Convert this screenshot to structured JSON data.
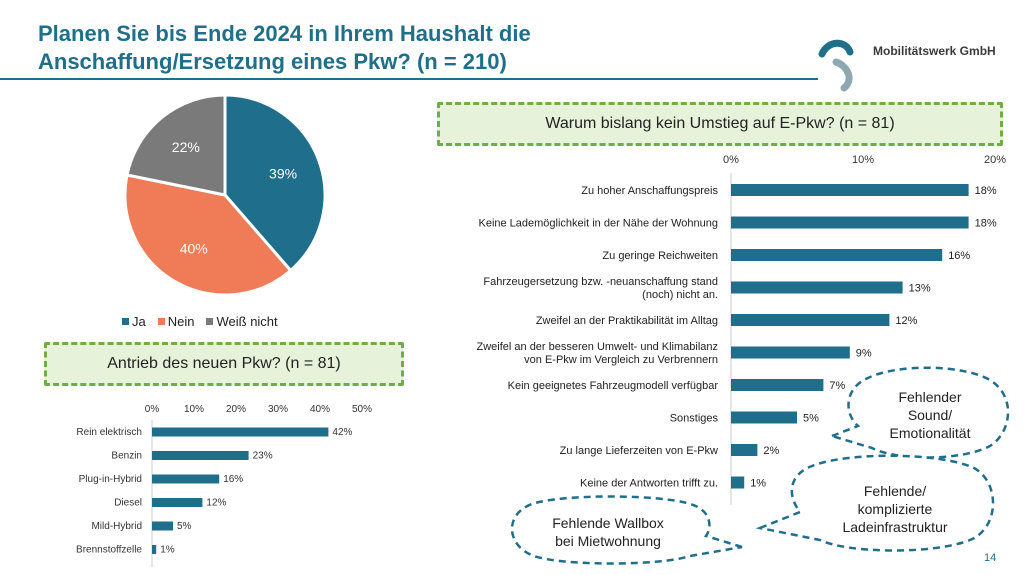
{
  "title": {
    "line1": "Planen Sie bis Ende 2024 in Ihrem Haushalt die",
    "line2": "Anschaffung/Ersetzung eines Pkw? (n = 210)"
  },
  "logo": {
    "text": "Mobilitätswerk GmbH"
  },
  "page_number": "14",
  "callouts": {
    "sound": [
      "Fehlender",
      "Sound/",
      "Emotionalität"
    ],
    "infra": [
      "Fehlende/",
      "komplizierte",
      "Ladeinfrastruktur"
    ],
    "wallbox": [
      "Fehlende Wallbox",
      "bei Mietwohnung"
    ]
  },
  "colors": {
    "accent": "#1f6f8b",
    "ja": "#1e6e8c",
    "nein": "#ef7b57",
    "weiss_nicht": "#7a7a7a",
    "box_fill": "#e6f2da",
    "box_border": "#71ad47"
  },
  "chart_data": [
    {
      "type": "pie",
      "labels": [
        "Ja",
        "Nein",
        "Weiß nicht"
      ],
      "values": [
        39,
        40,
        22
      ],
      "value_labels": [
        "39%",
        "40%",
        "22%"
      ],
      "legend": "bottom"
    },
    {
      "type": "bar",
      "orientation": "horizontal",
      "title": "Antrieb des neuen Pkw? (n = 81)",
      "categories": [
        "Rein elektrisch",
        "Benzin",
        "Plug-in-Hybrid",
        "Diesel",
        "Mild-Hybrid",
        "Brennstoffzelle"
      ],
      "values": [
        42,
        23,
        16,
        12,
        5,
        1
      ],
      "value_labels": [
        "42%",
        "23%",
        "16%",
        "12%",
        "5%",
        "1%"
      ],
      "xlim": [
        0,
        50
      ],
      "xticks": [
        "0%",
        "10%",
        "20%",
        "30%",
        "40%",
        "50%"
      ]
    },
    {
      "type": "bar",
      "orientation": "horizontal",
      "title": "Warum bislang kein Umstieg auf E-Pkw? (n = 81)",
      "categories": [
        [
          "Zu hoher Anschaffungspreis"
        ],
        [
          "Keine Lademöglichkeit in der Nähe der Wohnung"
        ],
        [
          "Zu geringe Reichweiten"
        ],
        [
          "Fahrzeugersetzung bzw. -neuanschaffung stand",
          "(noch) nicht an."
        ],
        [
          "Zweifel an der Praktikabilität im Alltag"
        ],
        [
          "Zweifel an der besseren Umwelt- und Klimabilanz",
          "von E-Pkw im Vergleich zu Verbrennern"
        ],
        [
          "Kein geeignetes Fahrzeugmodell verfügbar"
        ],
        [
          "Sonstiges"
        ],
        [
          "Zu lange Lieferzeiten von E-Pkw"
        ],
        [
          "Keine der Antworten trifft zu."
        ]
      ],
      "values": [
        18,
        18,
        16,
        13,
        12,
        9,
        7,
        5,
        2,
        1
      ],
      "value_labels": [
        "18%",
        "18%",
        "16%",
        "13%",
        "12%",
        "9%",
        "7%",
        "5%",
        "2%",
        "1%"
      ],
      "xlim": [
        0,
        20
      ],
      "xticks": [
        "0%",
        "10%",
        "20%"
      ]
    }
  ]
}
